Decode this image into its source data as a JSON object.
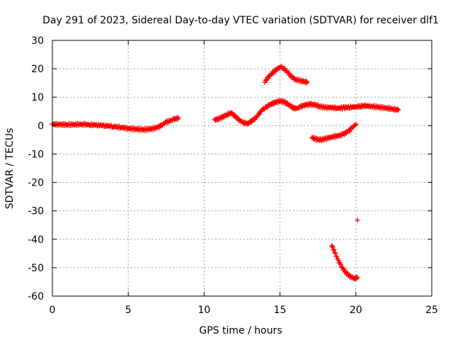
{
  "chart_data": {
    "type": "scatter",
    "title": "Day 291 of 2023, Sidereal Day-to-day VTEC variation (SDTVAR) for receiver dlf1",
    "xlabel": "GPS time / hours",
    "ylabel": "SDTVAR / TECUs",
    "xlim": [
      0,
      25
    ],
    "ylim": [
      -60,
      30
    ],
    "xticks": [
      0,
      5,
      10,
      15,
      20,
      25
    ],
    "yticks": [
      -60,
      -50,
      -40,
      -30,
      -20,
      -10,
      0,
      10,
      20,
      30
    ],
    "grid": true,
    "marker": "+",
    "series": [
      {
        "name": "SDTVAR",
        "color": "#ff0000",
        "segments": [
          [
            [
              0,
              0.5
            ],
            [
              0.5,
              0.4
            ],
            [
              1,
              0.3
            ],
            [
              1.5,
              0.4
            ],
            [
              2,
              0.5
            ],
            [
              2.5,
              0.3
            ],
            [
              3,
              0.2
            ],
            [
              3.5,
              0
            ],
            [
              4,
              -0.3
            ],
            [
              4.5,
              -0.6
            ],
            [
              5,
              -1
            ],
            [
              5.5,
              -1.2
            ],
            [
              6,
              -1.4
            ],
            [
              6.5,
              -1.2
            ],
            [
              7,
              -0.5
            ],
            [
              7.5,
              1.2
            ],
            [
              8,
              2.2
            ],
            [
              8.3,
              2.7
            ]
          ],
          [
            [
              10.7,
              2
            ],
            [
              11,
              2.5
            ],
            [
              11.5,
              3.8
            ],
            [
              11.8,
              4.5
            ],
            [
              12,
              3.5
            ],
            [
              12.3,
              2
            ],
            [
              12.6,
              1
            ],
            [
              12.9,
              0.7
            ],
            [
              13.1,
              1.5
            ],
            [
              13.4,
              2.7
            ],
            [
              13.6,
              4
            ],
            [
              13.8,
              5.5
            ],
            [
              14,
              6.3
            ],
            [
              14.3,
              7.2
            ],
            [
              14.6,
              8
            ],
            [
              15,
              8.7
            ],
            [
              15.3,
              8.3
            ],
            [
              15.6,
              7.2
            ],
            [
              15.9,
              6.2
            ],
            [
              16.1,
              6
            ],
            [
              16.4,
              6.8
            ],
            [
              16.7,
              7.3
            ],
            [
              17,
              7.5
            ],
            [
              17.3,
              7.3
            ],
            [
              17.6,
              6.8
            ],
            [
              18,
              6.3
            ],
            [
              18.4,
              6.4
            ],
            [
              18.8,
              6.1
            ],
            [
              19.2,
              6.3
            ],
            [
              19.6,
              6.5
            ],
            [
              20,
              6.6
            ],
            [
              20.3,
              6.8
            ],
            [
              20.6,
              7
            ],
            [
              21,
              6.8
            ],
            [
              21.5,
              6.5
            ],
            [
              22,
              6.2
            ],
            [
              22.5,
              5.8
            ],
            [
              22.8,
              5.5
            ]
          ],
          [
            [
              14,
              15.5
            ],
            [
              14.3,
              17.5
            ],
            [
              14.6,
              19
            ],
            [
              14.9,
              20.3
            ],
            [
              15.1,
              20.5
            ],
            [
              15.4,
              19.5
            ],
            [
              15.7,
              17.5
            ],
            [
              16,
              16.2
            ],
            [
              16.4,
              15.8
            ],
            [
              16.8,
              15.2
            ]
          ],
          [
            [
              17.1,
              -4.2
            ],
            [
              17.4,
              -4.8
            ],
            [
              17.7,
              -5
            ],
            [
              18,
              -4.6
            ],
            [
              18.4,
              -4
            ],
            [
              18.8,
              -3.6
            ],
            [
              19.2,
              -3
            ],
            [
              19.6,
              -1.5
            ],
            [
              20,
              0.5
            ]
          ],
          [
            [
              18.4,
              -42
            ],
            [
              18.6,
              -44.5
            ],
            [
              18.8,
              -47
            ],
            [
              19,
              -49.2
            ],
            [
              19.3,
              -51.5
            ],
            [
              19.6,
              -53
            ],
            [
              19.9,
              -53.8
            ],
            [
              20.1,
              -53.5
            ]
          ],
          [
            [
              20.1,
              -33.3
            ]
          ]
        ]
      }
    ]
  }
}
